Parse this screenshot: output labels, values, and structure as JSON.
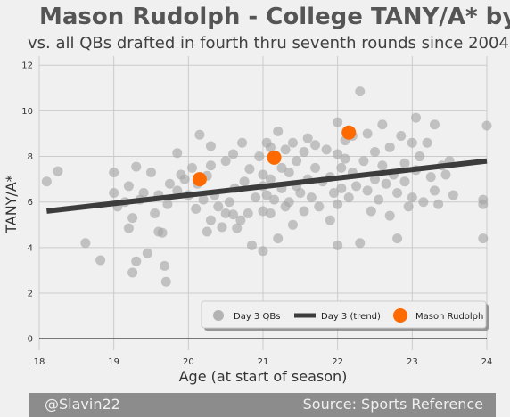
{
  "chart_data": {
    "type": "scatter",
    "title": "Mason Rudolph - College TANY/A* by Age",
    "subtitle": "vs. all QBs drafted in fourth thru seventh rounds since 2004",
    "xlabel": "Age (at start of season)",
    "ylabel": "TANY/A*",
    "xlim": [
      18,
      24
    ],
    "ylim": [
      -0.5,
      12.4
    ],
    "xticks": [
      18,
      19,
      20,
      21,
      22,
      23,
      24
    ],
    "yticks": [
      0,
      2,
      4,
      6,
      8,
      10,
      12
    ],
    "grid": true,
    "legend_position": "bottom-right",
    "series": [
      {
        "name": "Day 3 QBs",
        "color": "#a8a8a8",
        "points": [
          [
            18.1,
            6.9
          ],
          [
            18.25,
            7.35
          ],
          [
            18.62,
            4.2
          ],
          [
            18.82,
            3.45
          ],
          [
            19.0,
            7.3
          ],
          [
            19.0,
            6.4
          ],
          [
            19.05,
            5.8
          ],
          [
            19.15,
            6.0
          ],
          [
            19.2,
            6.7
          ],
          [
            19.2,
            4.85
          ],
          [
            19.25,
            5.3
          ],
          [
            19.25,
            2.9
          ],
          [
            19.3,
            7.55
          ],
          [
            19.3,
            3.4
          ],
          [
            19.35,
            6.1
          ],
          [
            19.4,
            6.4
          ],
          [
            19.45,
            3.75
          ],
          [
            19.5,
            7.3
          ],
          [
            19.55,
            5.5
          ],
          [
            19.6,
            6.3
          ],
          [
            19.6,
            4.7
          ],
          [
            19.65,
            4.65
          ],
          [
            19.68,
            3.2
          ],
          [
            19.7,
            2.5
          ],
          [
            19.72,
            5.9
          ],
          [
            19.75,
            6.8
          ],
          [
            19.85,
            6.5
          ],
          [
            19.85,
            8.15
          ],
          [
            19.9,
            7.2
          ],
          [
            19.95,
            7.0
          ],
          [
            20.0,
            6.3
          ],
          [
            20.05,
            7.5
          ],
          [
            20.1,
            5.7
          ],
          [
            20.12,
            6.8
          ],
          [
            20.15,
            8.95
          ],
          [
            20.2,
            6.1
          ],
          [
            20.25,
            7.15
          ],
          [
            20.25,
            4.7
          ],
          [
            20.3,
            8.45
          ],
          [
            20.3,
            7.6
          ],
          [
            20.3,
            5.2
          ],
          [
            20.35,
            6.3
          ],
          [
            20.4,
            5.8
          ],
          [
            20.45,
            4.9
          ],
          [
            20.5,
            5.5
          ],
          [
            20.5,
            7.8
          ],
          [
            20.55,
            6.0
          ],
          [
            20.6,
            5.45
          ],
          [
            20.6,
            8.1
          ],
          [
            20.62,
            6.6
          ],
          [
            20.65,
            4.85
          ],
          [
            20.7,
            5.2
          ],
          [
            20.72,
            8.6
          ],
          [
            20.75,
            6.9
          ],
          [
            20.8,
            5.5
          ],
          [
            20.82,
            7.45
          ],
          [
            20.85,
            4.1
          ],
          [
            20.9,
            6.2
          ],
          [
            20.95,
            8.0
          ],
          [
            21.0,
            6.7
          ],
          [
            21.0,
            7.2
          ],
          [
            21.0,
            5.6
          ],
          [
            21.0,
            3.85
          ],
          [
            21.05,
            8.6
          ],
          [
            21.05,
            6.3
          ],
          [
            21.1,
            8.4
          ],
          [
            21.1,
            7.0
          ],
          [
            21.1,
            5.5
          ],
          [
            21.15,
            6.1
          ],
          [
            21.2,
            9.1
          ],
          [
            21.2,
            4.4
          ],
          [
            21.25,
            7.5
          ],
          [
            21.25,
            6.6
          ],
          [
            21.3,
            5.8
          ],
          [
            21.3,
            8.3
          ],
          [
            21.35,
            7.3
          ],
          [
            21.35,
            6.0
          ],
          [
            21.4,
            8.6
          ],
          [
            21.4,
            5.0
          ],
          [
            21.45,
            6.7
          ],
          [
            21.45,
            7.8
          ],
          [
            21.5,
            6.4
          ],
          [
            21.55,
            8.2
          ],
          [
            21.55,
            5.6
          ],
          [
            21.6,
            7.0
          ],
          [
            21.6,
            8.8
          ],
          [
            21.65,
            6.2
          ],
          [
            21.7,
            7.5
          ],
          [
            21.7,
            8.5
          ],
          [
            21.75,
            5.8
          ],
          [
            21.8,
            6.9
          ],
          [
            21.85,
            8.3
          ],
          [
            21.9,
            7.1
          ],
          [
            21.9,
            5.2
          ],
          [
            21.95,
            6.4
          ],
          [
            22.0,
            9.5
          ],
          [
            22.0,
            8.1
          ],
          [
            22.0,
            5.9
          ],
          [
            22.0,
            4.1
          ],
          [
            22.05,
            7.5
          ],
          [
            22.05,
            6.6
          ],
          [
            22.1,
            8.7
          ],
          [
            22.1,
            7.9
          ],
          [
            22.15,
            6.2
          ],
          [
            22.2,
            7.3
          ],
          [
            22.2,
            8.9
          ],
          [
            22.25,
            6.7
          ],
          [
            22.3,
            10.85
          ],
          [
            22.3,
            4.2
          ],
          [
            22.35,
            7.8
          ],
          [
            22.4,
            6.5
          ],
          [
            22.4,
            9.0
          ],
          [
            22.45,
            5.6
          ],
          [
            22.5,
            8.2
          ],
          [
            22.5,
            7.0
          ],
          [
            22.55,
            6.1
          ],
          [
            22.6,
            9.4
          ],
          [
            22.6,
            7.6
          ],
          [
            22.65,
            6.8
          ],
          [
            22.7,
            8.4
          ],
          [
            22.7,
            5.4
          ],
          [
            22.75,
            7.2
          ],
          [
            22.8,
            6.4
          ],
          [
            22.8,
            4.4
          ],
          [
            22.85,
            8.9
          ],
          [
            22.9,
            7.7
          ],
          [
            22.9,
            6.9
          ],
          [
            22.95,
            5.8
          ],
          [
            23.0,
            8.6
          ],
          [
            23.0,
            6.2
          ],
          [
            23.05,
            9.7
          ],
          [
            23.05,
            7.4
          ],
          [
            23.1,
            8.0
          ],
          [
            23.15,
            6.0
          ],
          [
            23.2,
            8.6
          ],
          [
            23.25,
            7.1
          ],
          [
            23.3,
            9.4
          ],
          [
            23.3,
            6.5
          ],
          [
            23.35,
            5.9
          ],
          [
            23.4,
            7.6
          ],
          [
            23.45,
            7.2
          ],
          [
            23.5,
            7.8
          ],
          [
            23.55,
            6.3
          ],
          [
            23.95,
            5.9
          ],
          [
            23.95,
            6.1
          ],
          [
            23.95,
            4.4
          ],
          [
            24.0,
            9.35
          ]
        ]
      },
      {
        "name": "Day 3 (trend)",
        "color": "#3c3c3c",
        "points": [
          [
            18.1,
            5.6
          ],
          [
            24.0,
            7.8
          ]
        ]
      },
      {
        "name": "Mason Rudolph",
        "color": "#ff6a00",
        "points": [
          [
            20.15,
            7.0
          ],
          [
            21.15,
            7.95
          ],
          [
            22.15,
            9.05
          ]
        ]
      }
    ]
  },
  "footer": {
    "left": "@Slavin22",
    "right": "Source: Sports Reference"
  }
}
